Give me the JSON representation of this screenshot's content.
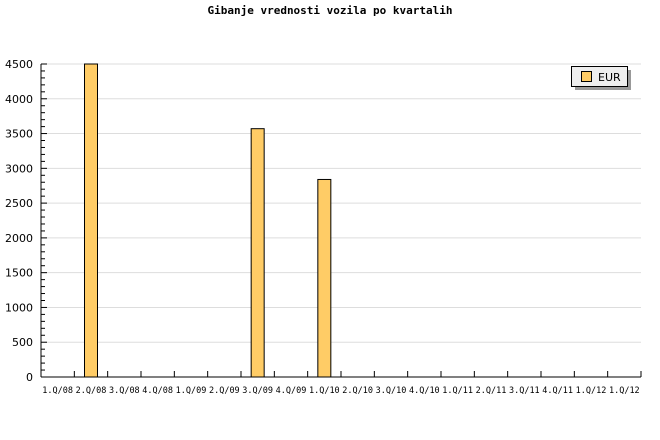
{
  "chart_data": {
    "type": "bar",
    "title": "Gibanje vrednosti vozila po kvartalih",
    "categories": [
      "1.Q/08",
      "2.Q/08",
      "3.Q/08",
      "4.Q/08",
      "1.Q/09",
      "2.Q/09",
      "3.Q/09",
      "4.Q/09",
      "1.Q/10",
      "2.Q/10",
      "3.Q/10",
      "4.Q/10",
      "1.Q/11",
      "2.Q/11",
      "3.Q/11",
      "4.Q/11",
      "1.Q/12",
      "1.Q/12"
    ],
    "series": [
      {
        "name": "EUR",
        "values": [
          0,
          4500,
          0,
          0,
          0,
          0,
          3570,
          0,
          2840,
          0,
          0,
          0,
          0,
          0,
          0,
          0,
          0,
          0
        ]
      }
    ],
    "ylim": [
      0,
      4500
    ],
    "yticks": [
      0,
      500,
      1000,
      1500,
      2000,
      2500,
      3000,
      3500,
      4000,
      4500
    ],
    "grid": true,
    "legend": "top-right",
    "colors": {
      "bar": "#ffcc66",
      "grid": "#dddddd"
    }
  }
}
